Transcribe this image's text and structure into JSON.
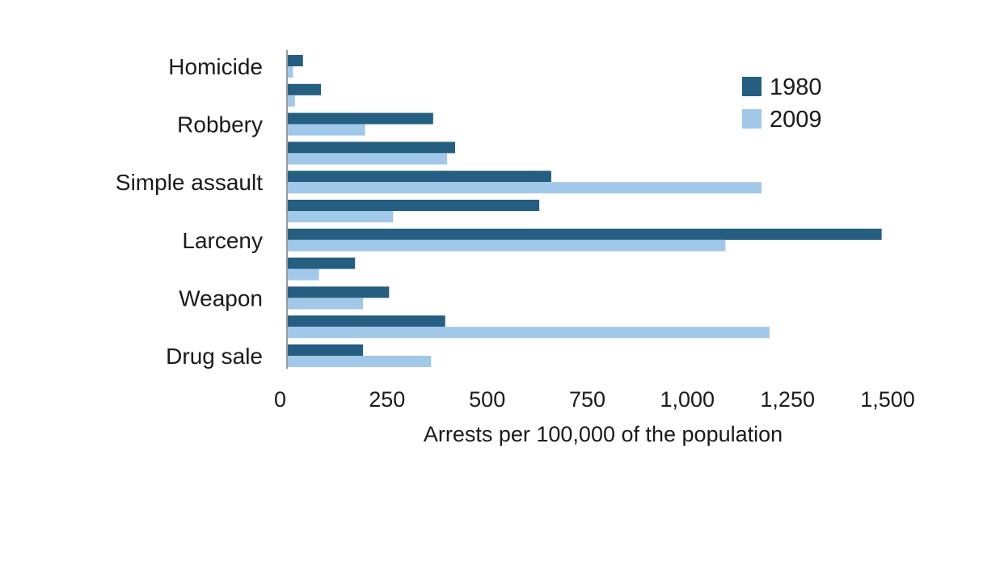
{
  "chart_data": {
    "type": "bar",
    "orientation": "horizontal",
    "title": "",
    "xlabel": "Arrests per 100,000 of the population",
    "ylabel": "",
    "xlim": [
      0,
      1500
    ],
    "xticks": [
      0,
      250,
      500,
      750,
      1000,
      1250,
      1500
    ],
    "xtick_labels": [
      "0",
      "250",
      "500",
      "750",
      "1,000",
      "1,250",
      "1,500"
    ],
    "categories": [
      "Homicide",
      "",
      "Robbery",
      "",
      "Simple assault",
      "",
      "Larceny",
      "",
      "Weapon",
      "",
      "Drug sale"
    ],
    "series": [
      {
        "name": "1980",
        "color": "#245e80",
        "values": [
          40,
          85,
          365,
          420,
          660,
          630,
          1485,
          170,
          255,
          395,
          190
        ]
      },
      {
        "name": "2009",
        "color": "#a2c8e9",
        "values": [
          15,
          20,
          195,
          400,
          1185,
          265,
          1095,
          80,
          190,
          1205,
          360
        ]
      }
    ],
    "legend": {
      "position": "top-right",
      "entries": [
        "1980",
        "2009"
      ]
    },
    "grid": false
  }
}
